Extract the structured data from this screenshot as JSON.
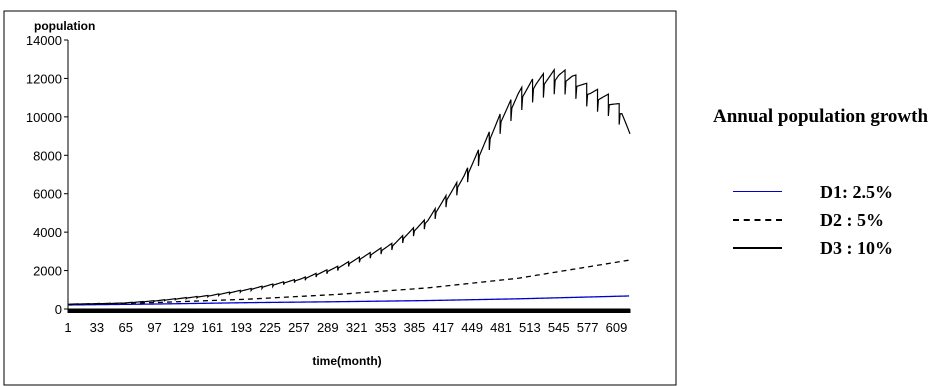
{
  "chart_data": {
    "type": "line",
    "title": "",
    "ylabel": "population",
    "xlabel": "time(month)",
    "ylim": [
      0,
      14000
    ],
    "xlim": [
      1,
      624
    ],
    "y_ticks": [
      0,
      2000,
      4000,
      6000,
      8000,
      10000,
      12000,
      14000
    ],
    "x_tick_labels": [
      "1",
      "33",
      "65",
      "97",
      "129",
      "161",
      "193",
      "225",
      "257",
      "289",
      "321",
      "353",
      "385",
      "417",
      "449",
      "481",
      "513",
      "545",
      "577",
      "609"
    ],
    "legend": {
      "title": "Annual population growth",
      "placement": "right"
    },
    "series": [
      {
        "name": "D1: 2.5%",
        "color": "#0000cc",
        "style": "solid",
        "x": [
          1,
          100,
          200,
          300,
          400,
          500,
          624
        ],
        "y": [
          210,
          260,
          330,
          380,
          440,
          530,
          680
        ]
      },
      {
        "name": "D2 : 5%",
        "color": "#000000",
        "style": "dashed",
        "x": [
          1,
          100,
          200,
          300,
          400,
          500,
          624
        ],
        "y": [
          230,
          340,
          510,
          760,
          1100,
          1600,
          2550
        ]
      },
      {
        "name": "D3 : 10%",
        "color": "#000000",
        "style": "solid",
        "x": [
          1,
          60,
          100,
          160,
          200,
          260,
          300,
          360,
          400,
          440,
          480,
          500,
          520,
          545,
          560,
          580,
          600,
          615,
          624
        ],
        "y": [
          250,
          300,
          430,
          700,
          1000,
          1550,
          2150,
          3300,
          4600,
          6800,
          9800,
          11000,
          11700,
          12100,
          11900,
          11200,
          10800,
          10200,
          8800
        ]
      }
    ]
  }
}
